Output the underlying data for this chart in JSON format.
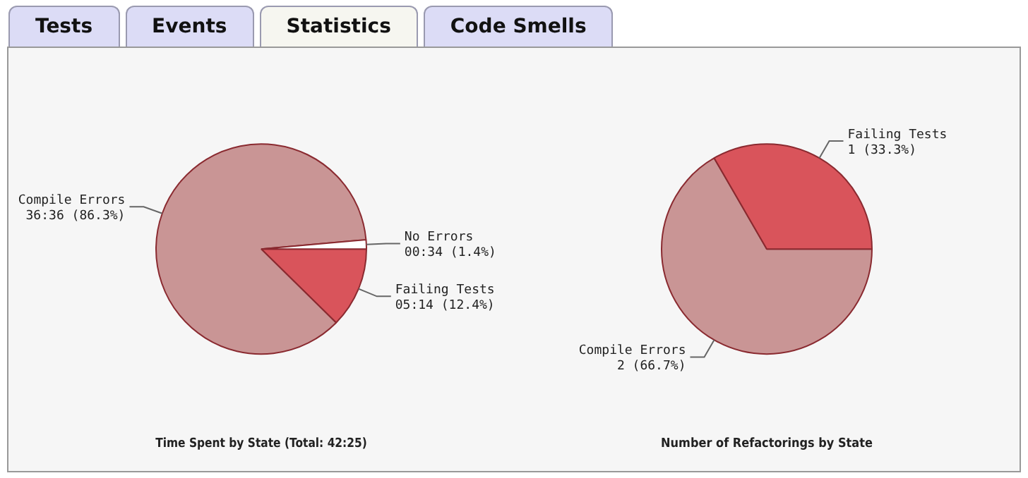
{
  "chart_data": [
    {
      "type": "other",
      "annotations": [
        "Tests",
        "Events",
        "Statistics",
        "Code Smells"
      ]
    },
    {
      "type": "pie",
      "title": "Time Spent by State (Total: 42:25)",
      "categories": [
        "Failing Tests",
        "Compile Errors",
        "No Errors"
      ],
      "values": [
        12.4,
        86.3,
        1.4
      ],
      "value_labels": [
        "05:14 (12.4%)",
        "36:36 (86.3%)",
        "00:34 (1.4%)"
      ],
      "colors": [
        "#d9545b",
        "#c99595",
        "#ffffff"
      ],
      "legend": false
    },
    {
      "type": "pie",
      "title": "Number of Refactorings by State",
      "categories": [
        "Compile Errors",
        "Failing Tests"
      ],
      "values": [
        2,
        1
      ],
      "value_labels": [
        "2 (66.7%)",
        "1 (33.3%)"
      ],
      "colors": [
        "#c99595",
        "#d9545b"
      ],
      "legend": false
    }
  ]
}
